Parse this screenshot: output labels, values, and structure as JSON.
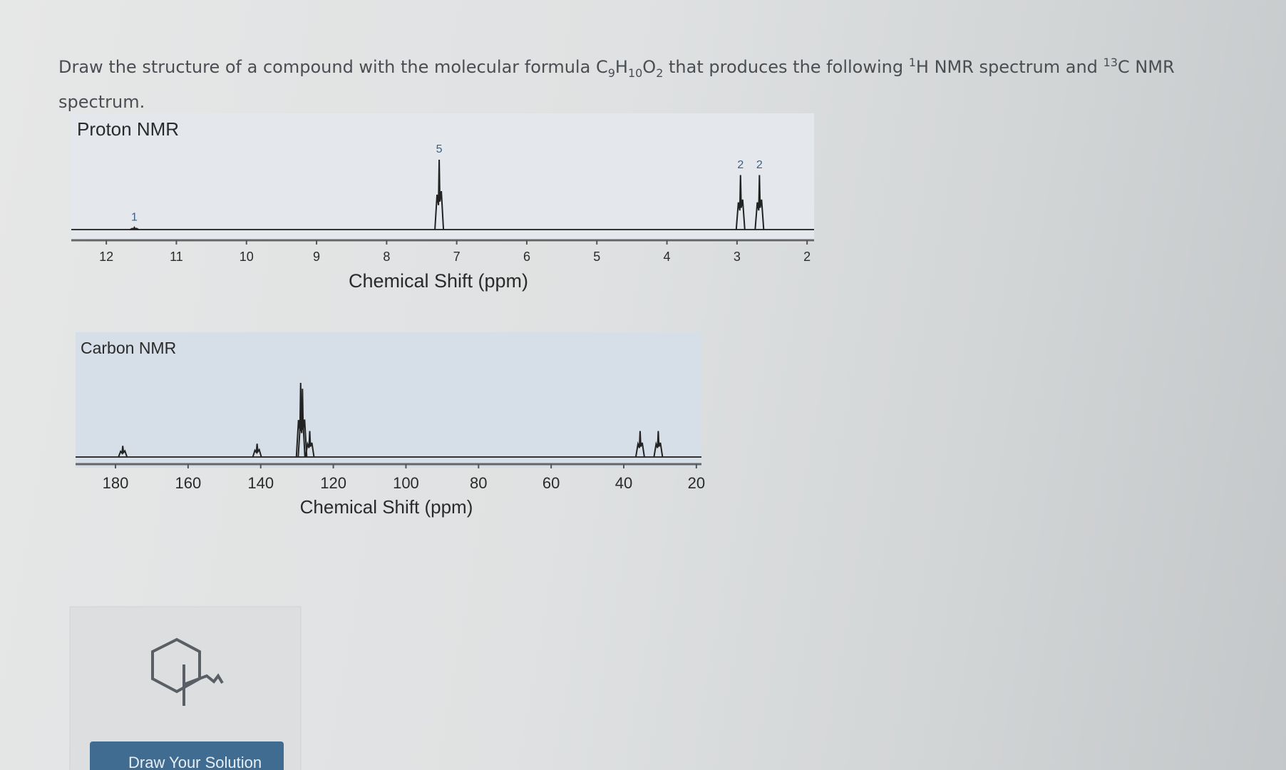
{
  "question": [
    "Draw the structure of a compound with the molecular formula C",
    "9",
    "H",
    "10",
    "O",
    "2",
    " that produces the following ",
    "1",
    "H NMR spectrum and ",
    "13",
    "C NMR spectrum."
  ],
  "button": "Draw Your Solution",
  "chart_data": [
    {
      "type": "spectrum",
      "title": "Proton NMR",
      "x_label": "Chemical Shift (ppm)",
      "xlim": [
        12.5,
        1.9
      ],
      "xticks": [
        12,
        11,
        10,
        9,
        8,
        7,
        6,
        5,
        4,
        3,
        2
      ],
      "x": [
        11.6,
        7.25,
        2.95,
        2.68
      ],
      "values": [
        3,
        100,
        78,
        78
      ],
      "ylim": [
        0,
        100
      ],
      "integrations": [
        1,
        5,
        2,
        2
      ],
      "color": "#222222"
    },
    {
      "type": "spectrum",
      "title": "Carbon NMR",
      "x_label": "Chemical Shift (ppm)",
      "xlim": [
        191,
        18.6
      ],
      "xticks": [
        180,
        160,
        140,
        120,
        100,
        80,
        60,
        40,
        20
      ],
      "x": [
        178,
        141,
        129,
        128.5,
        126.5,
        35.5,
        30.5
      ],
      "values": [
        15,
        18,
        100,
        92,
        35,
        35,
        35
      ],
      "ylim": [
        0,
        100
      ],
      "color": "#222222"
    }
  ]
}
